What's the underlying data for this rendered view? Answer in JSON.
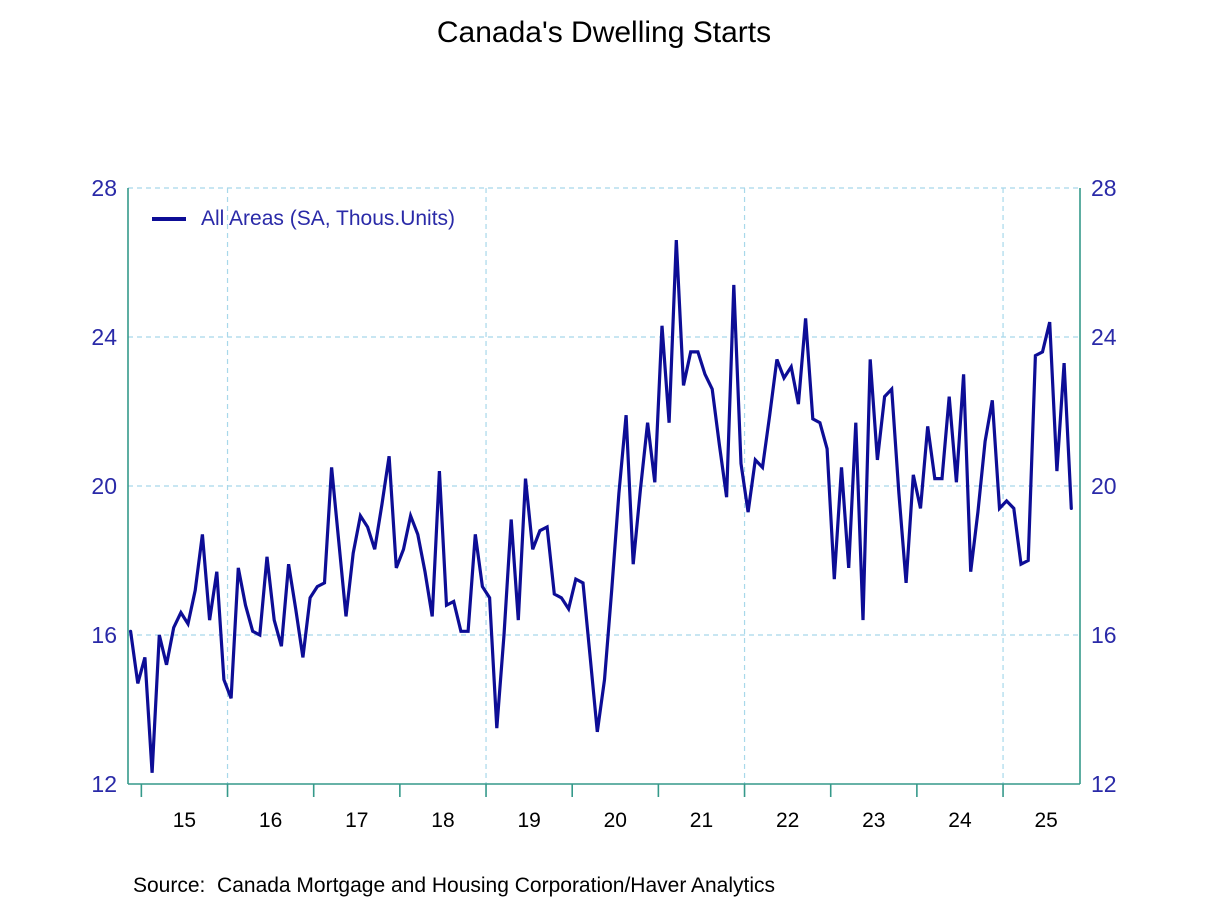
{
  "colors": {
    "background": "#ffffff",
    "axis_teal": "#35998a",
    "gridline_blue": "#a8d8ea",
    "axis_label_blue": "#2a2aa8",
    "line_navy": "#0d0d96",
    "text_black": "#000000"
  },
  "chart_data": {
    "type": "line",
    "title": "Canada's Dwelling Starts",
    "source": "Source:  Canada Mortgage and Housing Corporation/Haver Analytics",
    "legend_label": "All Areas (SA, Thous.Units)",
    "grid": true,
    "legend_position": "top-left-inside",
    "y_axis": {
      "min": 12,
      "max": 28,
      "ticks": [
        12,
        16,
        20,
        24,
        28
      ],
      "gridline_values": [
        16,
        20,
        24,
        28
      ],
      "label_sides": "both"
    },
    "x_axis": {
      "range": [
        2014.845,
        2025.893
      ],
      "tick_years": [
        2015,
        2016,
        2017,
        2018,
        2019,
        2020,
        2021,
        2022,
        2023,
        2024,
        2025
      ],
      "tick_labels": [
        "15",
        "16",
        "17",
        "18",
        "19",
        "20",
        "21",
        "22",
        "23",
        "24",
        "25"
      ],
      "gridline_years": [
        2016,
        2019,
        2022,
        2025
      ]
    },
    "series": [
      {
        "name": "All Areas (SA, Thous.Units)",
        "frequency": "monthly",
        "start": "2014-11",
        "end": "2025-10",
        "values": [
          16.1,
          14.7,
          15.4,
          12.3,
          16.0,
          15.2,
          16.2,
          16.6,
          16.3,
          17.2,
          18.7,
          16.4,
          17.7,
          14.8,
          14.3,
          17.8,
          16.8,
          16.1,
          16.0,
          18.1,
          16.4,
          15.7,
          17.9,
          16.7,
          15.4,
          17.0,
          17.3,
          17.4,
          20.5,
          18.5,
          16.5,
          18.2,
          19.2,
          18.9,
          18.3,
          19.5,
          20.8,
          17.8,
          18.3,
          19.2,
          18.7,
          17.7,
          16.5,
          20.4,
          16.8,
          16.9,
          16.1,
          16.1,
          18.7,
          17.3,
          17.0,
          13.5,
          16.0,
          19.1,
          16.4,
          20.2,
          18.3,
          18.8,
          18.9,
          17.1,
          17.0,
          16.7,
          17.5,
          17.4,
          15.4,
          13.4,
          14.8,
          17.2,
          19.8,
          21.9,
          17.9,
          19.9,
          21.7,
          20.1,
          24.3,
          21.7,
          26.6,
          22.7,
          23.6,
          23.6,
          23.0,
          22.6,
          21.1,
          19.7,
          25.4,
          20.6,
          19.3,
          20.7,
          20.5,
          21.9,
          23.4,
          22.9,
          23.2,
          22.2,
          24.5,
          21.8,
          21.7,
          21.0,
          17.5,
          20.5,
          17.8,
          21.7,
          16.4,
          23.4,
          20.7,
          22.4,
          22.6,
          19.8,
          17.4,
          20.3,
          19.4,
          21.6,
          20.2,
          20.2,
          22.4,
          20.1,
          23.0,
          17.7,
          19.3,
          21.2,
          22.3,
          19.4,
          19.6,
          19.4,
          17.9,
          18.0,
          23.5,
          23.6,
          24.4,
          20.4,
          23.3,
          19.4
        ]
      }
    ]
  }
}
